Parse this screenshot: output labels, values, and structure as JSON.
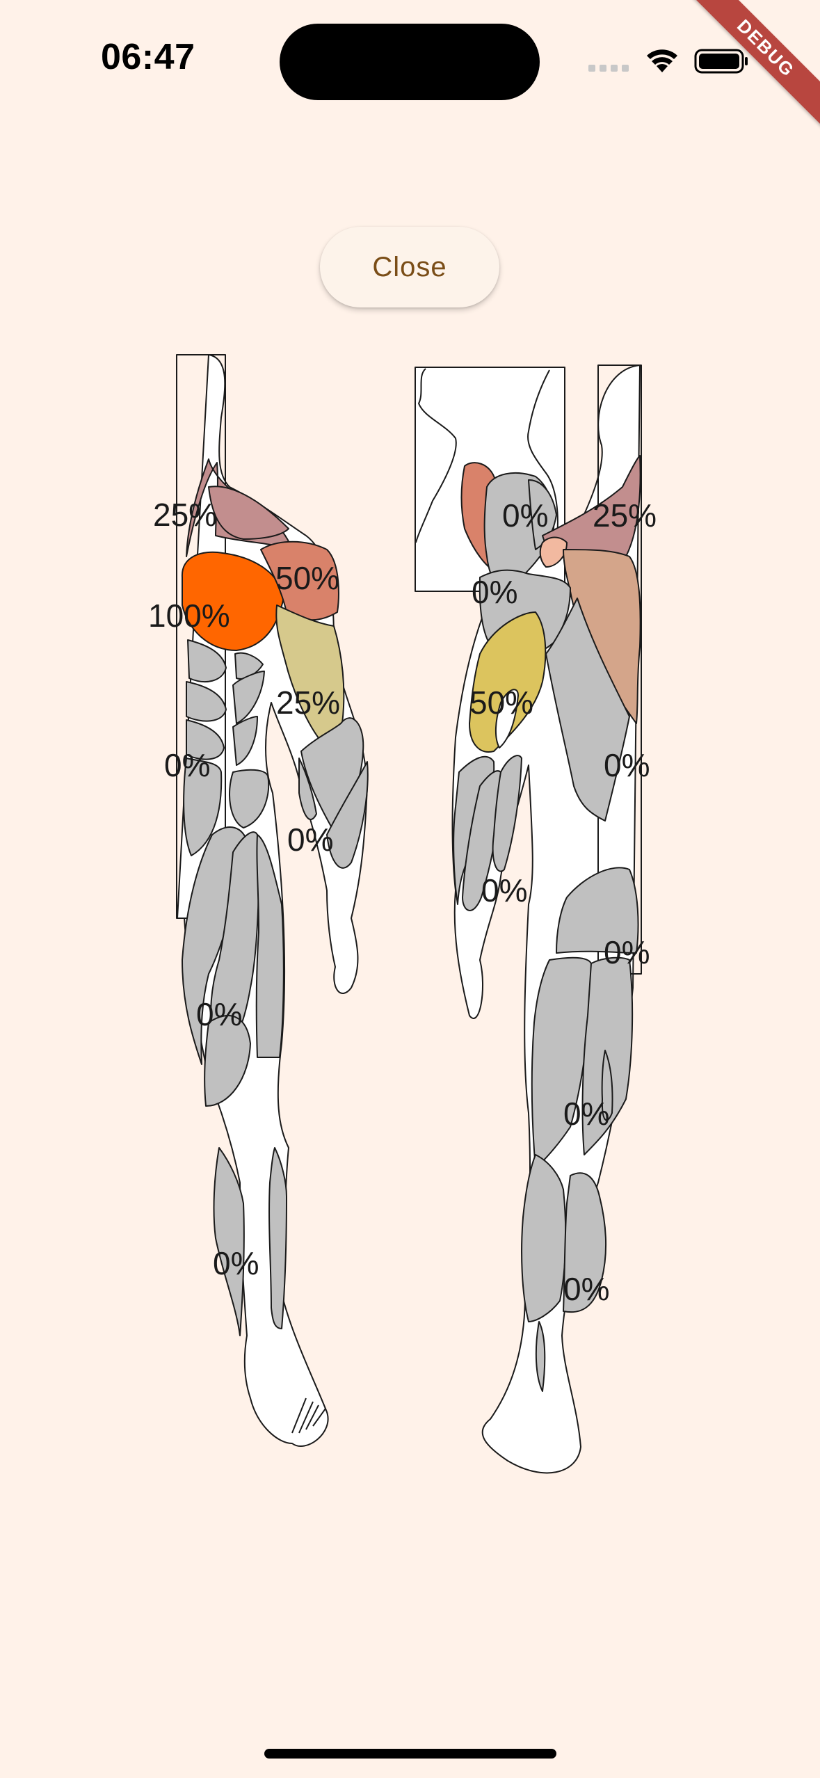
{
  "status_bar": {
    "time": "06:47",
    "icons": [
      "signal-dots-icon",
      "wifi-icon",
      "battery-icon"
    ]
  },
  "debug_banner": "DEBUG",
  "close_button": {
    "label": "Close"
  },
  "colors": {
    "background": "#fff2e9",
    "muscle_neutral": "#c0c0c0",
    "level_100": "#ff6600",
    "level_50": "#d9826a",
    "level_25_red": "#c28e8e",
    "level_25_yellow": "#d6c98c",
    "level_50_yellow": "#dcc45e",
    "button_text": "#7a4d17"
  },
  "front_view": {
    "labels": {
      "shoulder": "25%",
      "chest": "100%",
      "upper_arm": "50%",
      "forearm_upper": "25%",
      "abs": "0%",
      "forearm": "0%",
      "thigh": "0%",
      "calf": "0%"
    }
  },
  "back_view": {
    "labels": {
      "rear_delt": "0%",
      "trap": "25%",
      "neck_area": "0%",
      "triceps": "50%",
      "lats": "0%",
      "forearm": "0%",
      "glutes": "0%",
      "hamstring": "0%",
      "calf": "0%"
    }
  }
}
